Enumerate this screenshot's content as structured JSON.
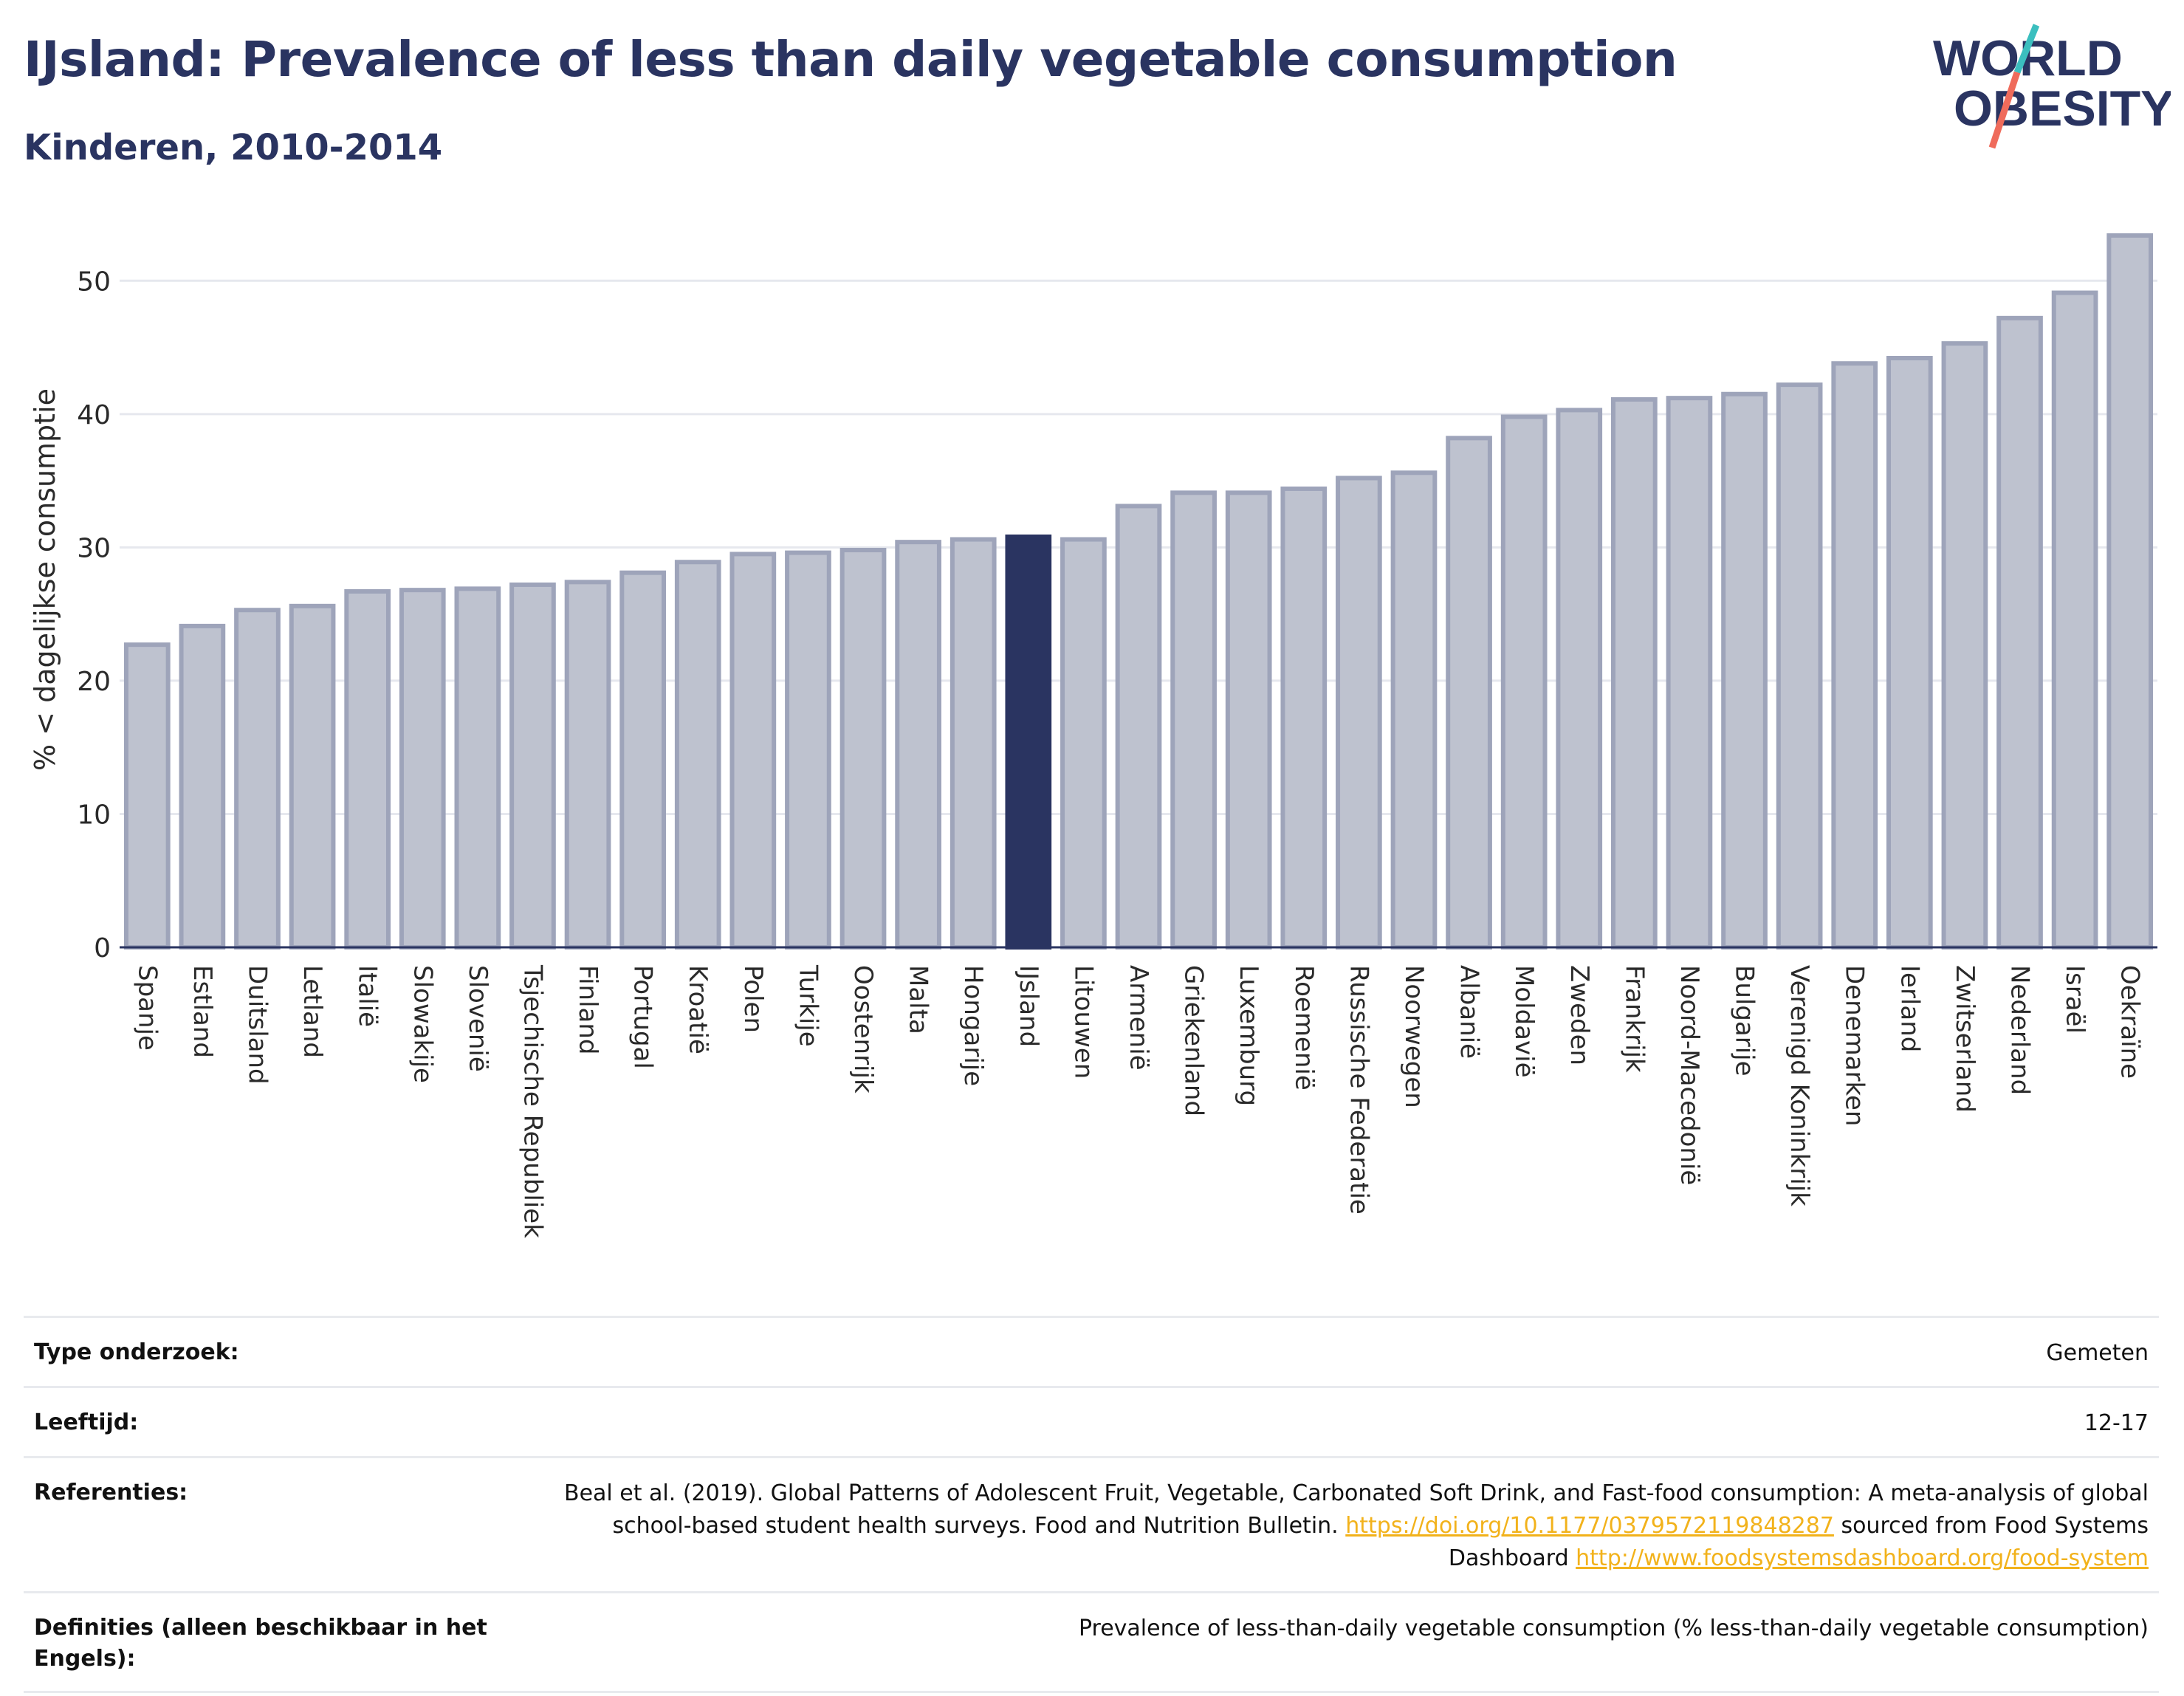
{
  "header": {
    "title": "IJsland: Prevalence of less than daily vegetable consumption",
    "subtitle": "Kinderen, 2010-2014"
  },
  "logo": {
    "line1": "WORLD",
    "line2": "OBESITY",
    "colors": {
      "text": "#2a3461",
      "slash_teal": "#3bbfbf",
      "slash_coral": "#ef6b5b"
    }
  },
  "colors": {
    "bar_default": "#bec2cf",
    "bar_border": "#9ea4ba",
    "bar_highlight": "#2a3461",
    "grid": "#e6e8ee",
    "axis": "#2a3461"
  },
  "chart_data": {
    "type": "bar",
    "ylabel": "% < dagelijkse consumptie",
    "ylim": [
      0,
      55
    ],
    "yticks": [
      0,
      10,
      20,
      30,
      40,
      50
    ],
    "grid": true,
    "highlight": "IJsland",
    "categories": [
      "Spanje",
      "Estland",
      "Duitsland",
      "Letland",
      "Italië",
      "Slowakije",
      "Slovenië",
      "Tsjechische Republiek",
      "Finland",
      "Portugal",
      "Kroatië",
      "Polen",
      "Turkije",
      "Oostenrijk",
      "Malta",
      "Hongarije",
      "IJsland",
      "Litouwen",
      "Armenië",
      "Griekenland",
      "Luxemburg",
      "Roemenië",
      "Russische Federatie",
      "Noorwegen",
      "Albanië",
      "Moldavië",
      "Zweden",
      "Frankrijk",
      "Noord-Macedonië",
      "Bulgarije",
      "Verenigd Koninkrijk",
      "Denemarken",
      "Ierland",
      "Zwitserland",
      "Nederland",
      "Israël",
      "Oekraïne"
    ],
    "values": [
      22.7,
      24.1,
      25.3,
      25.6,
      26.7,
      26.8,
      26.9,
      27.2,
      27.4,
      28.1,
      28.9,
      29.5,
      29.6,
      29.8,
      30.4,
      30.6,
      30.8,
      30.6,
      33.1,
      34.1,
      34.1,
      34.4,
      35.2,
      35.6,
      38.2,
      39.8,
      40.3,
      41.1,
      41.2,
      41.5,
      42.2,
      43.8,
      44.2,
      45.3,
      47.2,
      49.1,
      53.4
    ]
  },
  "meta": {
    "rows": [
      {
        "label": "Type onderzoek:",
        "value": "Gemeten"
      },
      {
        "label": "Leeftijd:",
        "value": "12-17"
      },
      {
        "label": "Definities (alleen beschikbaar in het Engels):",
        "value": "Prevalence of less-than-daily vegetable consumption (% less-than-daily vegetable consumption)"
      }
    ],
    "references": {
      "label": "Referenties:",
      "text1": "Beal et al. (2019). Global Patterns of Adolescent Fruit, Vegetable, Carbonated Soft Drink, and Fast-food consumption: A meta-analysis of global school-based student health surveys. Food and Nutrition Bulletin. ",
      "link1": "https://doi.org/10.1177/0379572119848287",
      "text2": " sourced from Food Systems Dashboard ",
      "link2": "http://www.foodsystemsdashboard.org/food-system"
    }
  }
}
